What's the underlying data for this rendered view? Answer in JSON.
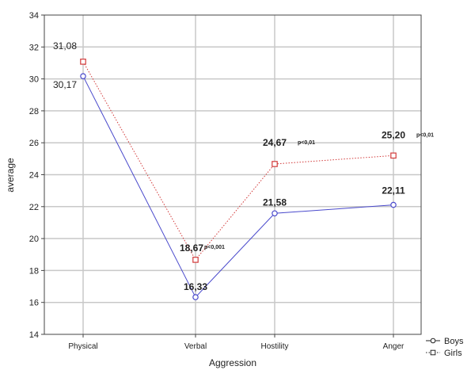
{
  "chart_data": {
    "type": "line",
    "title": "",
    "xlabel": "Aggression",
    "ylabel": "average",
    "categories": [
      "Physical",
      "Verbal",
      "Hostility",
      "Anger"
    ],
    "ylim": [
      14,
      34
    ],
    "yticks": [
      14,
      16,
      18,
      20,
      22,
      24,
      26,
      28,
      30,
      32,
      34
    ],
    "grid": true,
    "legend_position": "bottom-right",
    "series": [
      {
        "name": "Boys",
        "values": [
          30.17,
          16.33,
          21.58,
          22.11
        ],
        "labels": [
          "30,17",
          "16,33",
          "21,58",
          "22,11"
        ],
        "color": "#4a4acc",
        "line_style": "solid",
        "marker": "circle"
      },
      {
        "name": "Girls",
        "values": [
          31.08,
          18.67,
          24.67,
          25.2
        ],
        "labels": [
          "31,08",
          "18,67",
          "24,67",
          "25,20"
        ],
        "color": "#d23a3a",
        "line_style": "dotted",
        "marker": "square"
      }
    ],
    "annotations": [
      {
        "category": "Verbal",
        "series": "Girls",
        "text": "p<0,001"
      },
      {
        "category": "Hostility",
        "series": "Girls",
        "text": "p<0,01"
      },
      {
        "category": "Anger",
        "series": "Girls",
        "text": "p<0,01"
      }
    ]
  }
}
